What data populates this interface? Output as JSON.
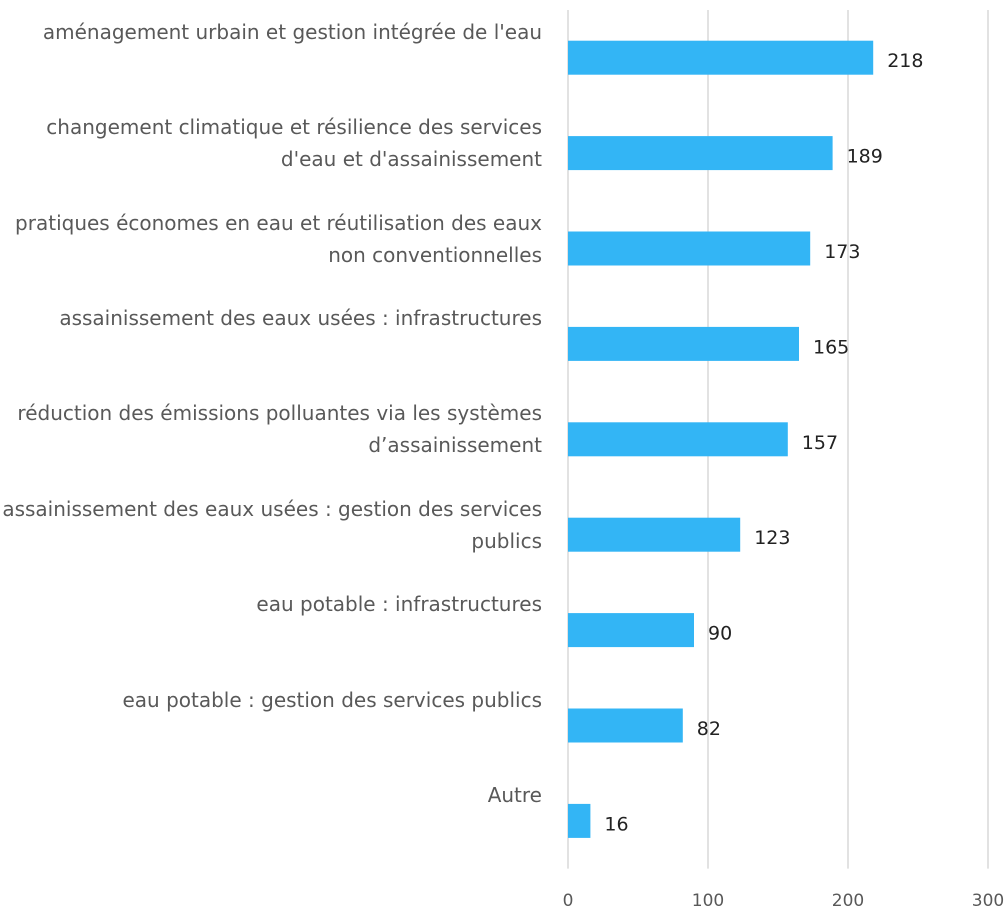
{
  "chart_data": {
    "type": "bar",
    "orientation": "horizontal",
    "categories": [
      "aménagement urbain et gestion intégrée de l'eau",
      "changement climatique et résilience des services d'eau et d'assainissement",
      "pratiques économes en eau et réutilisation des eaux non conventionnelles",
      "assainissement des eaux usées : infrastructures",
      "réduction des émissions polluantes via les systèmes d’assainissement",
      "assainissement des eaux usées : gestion des services publics",
      "eau potable : infrastructures",
      "eau potable : gestion des services publics",
      "Autre"
    ],
    "values": [
      218,
      189,
      173,
      165,
      157,
      123,
      90,
      82,
      16
    ],
    "color": "#33b5f5",
    "xlim": [
      0,
      300
    ],
    "xticks": [
      0,
      100,
      200,
      300
    ],
    "grid": true
  }
}
